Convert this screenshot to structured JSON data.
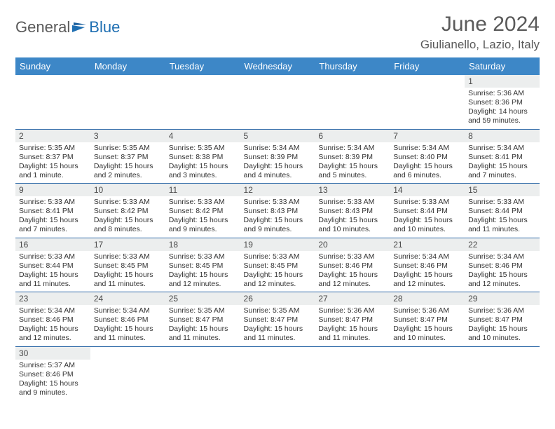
{
  "logo": {
    "text1": "General",
    "text2": "Blue"
  },
  "title": "June 2024",
  "location": "Giulianello, Lazio, Italy",
  "colors": {
    "header_bg": "#3d87c7",
    "header_text": "#ffffff",
    "row_border": "#2f6aa8",
    "shaded": "#eceeee",
    "text": "#333333"
  },
  "dayHeaders": [
    "Sunday",
    "Monday",
    "Tuesday",
    "Wednesday",
    "Thursday",
    "Friday",
    "Saturday"
  ],
  "weeks": [
    [
      null,
      null,
      null,
      null,
      null,
      null,
      {
        "n": "1",
        "sr": "Sunrise: 5:36 AM",
        "ss": "Sunset: 8:36 PM",
        "dl": "Daylight: 14 hours and 59 minutes."
      }
    ],
    [
      {
        "n": "2",
        "sr": "Sunrise: 5:35 AM",
        "ss": "Sunset: 8:37 PM",
        "dl": "Daylight: 15 hours and 1 minute."
      },
      {
        "n": "3",
        "sr": "Sunrise: 5:35 AM",
        "ss": "Sunset: 8:37 PM",
        "dl": "Daylight: 15 hours and 2 minutes."
      },
      {
        "n": "4",
        "sr": "Sunrise: 5:35 AM",
        "ss": "Sunset: 8:38 PM",
        "dl": "Daylight: 15 hours and 3 minutes."
      },
      {
        "n": "5",
        "sr": "Sunrise: 5:34 AM",
        "ss": "Sunset: 8:39 PM",
        "dl": "Daylight: 15 hours and 4 minutes."
      },
      {
        "n": "6",
        "sr": "Sunrise: 5:34 AM",
        "ss": "Sunset: 8:39 PM",
        "dl": "Daylight: 15 hours and 5 minutes."
      },
      {
        "n": "7",
        "sr": "Sunrise: 5:34 AM",
        "ss": "Sunset: 8:40 PM",
        "dl": "Daylight: 15 hours and 6 minutes."
      },
      {
        "n": "8",
        "sr": "Sunrise: 5:34 AM",
        "ss": "Sunset: 8:41 PM",
        "dl": "Daylight: 15 hours and 7 minutes."
      }
    ],
    [
      {
        "n": "9",
        "sr": "Sunrise: 5:33 AM",
        "ss": "Sunset: 8:41 PM",
        "dl": "Daylight: 15 hours and 7 minutes."
      },
      {
        "n": "10",
        "sr": "Sunrise: 5:33 AM",
        "ss": "Sunset: 8:42 PM",
        "dl": "Daylight: 15 hours and 8 minutes."
      },
      {
        "n": "11",
        "sr": "Sunrise: 5:33 AM",
        "ss": "Sunset: 8:42 PM",
        "dl": "Daylight: 15 hours and 9 minutes."
      },
      {
        "n": "12",
        "sr": "Sunrise: 5:33 AM",
        "ss": "Sunset: 8:43 PM",
        "dl": "Daylight: 15 hours and 9 minutes."
      },
      {
        "n": "13",
        "sr": "Sunrise: 5:33 AM",
        "ss": "Sunset: 8:43 PM",
        "dl": "Daylight: 15 hours and 10 minutes."
      },
      {
        "n": "14",
        "sr": "Sunrise: 5:33 AM",
        "ss": "Sunset: 8:44 PM",
        "dl": "Daylight: 15 hours and 10 minutes."
      },
      {
        "n": "15",
        "sr": "Sunrise: 5:33 AM",
        "ss": "Sunset: 8:44 PM",
        "dl": "Daylight: 15 hours and 11 minutes."
      }
    ],
    [
      {
        "n": "16",
        "sr": "Sunrise: 5:33 AM",
        "ss": "Sunset: 8:44 PM",
        "dl": "Daylight: 15 hours and 11 minutes."
      },
      {
        "n": "17",
        "sr": "Sunrise: 5:33 AM",
        "ss": "Sunset: 8:45 PM",
        "dl": "Daylight: 15 hours and 11 minutes."
      },
      {
        "n": "18",
        "sr": "Sunrise: 5:33 AM",
        "ss": "Sunset: 8:45 PM",
        "dl": "Daylight: 15 hours and 12 minutes."
      },
      {
        "n": "19",
        "sr": "Sunrise: 5:33 AM",
        "ss": "Sunset: 8:45 PM",
        "dl": "Daylight: 15 hours and 12 minutes."
      },
      {
        "n": "20",
        "sr": "Sunrise: 5:33 AM",
        "ss": "Sunset: 8:46 PM",
        "dl": "Daylight: 15 hours and 12 minutes."
      },
      {
        "n": "21",
        "sr": "Sunrise: 5:34 AM",
        "ss": "Sunset: 8:46 PM",
        "dl": "Daylight: 15 hours and 12 minutes."
      },
      {
        "n": "22",
        "sr": "Sunrise: 5:34 AM",
        "ss": "Sunset: 8:46 PM",
        "dl": "Daylight: 15 hours and 12 minutes."
      }
    ],
    [
      {
        "n": "23",
        "sr": "Sunrise: 5:34 AM",
        "ss": "Sunset: 8:46 PM",
        "dl": "Daylight: 15 hours and 12 minutes."
      },
      {
        "n": "24",
        "sr": "Sunrise: 5:34 AM",
        "ss": "Sunset: 8:46 PM",
        "dl": "Daylight: 15 hours and 11 minutes."
      },
      {
        "n": "25",
        "sr": "Sunrise: 5:35 AM",
        "ss": "Sunset: 8:47 PM",
        "dl": "Daylight: 15 hours and 11 minutes."
      },
      {
        "n": "26",
        "sr": "Sunrise: 5:35 AM",
        "ss": "Sunset: 8:47 PM",
        "dl": "Daylight: 15 hours and 11 minutes."
      },
      {
        "n": "27",
        "sr": "Sunrise: 5:36 AM",
        "ss": "Sunset: 8:47 PM",
        "dl": "Daylight: 15 hours and 11 minutes."
      },
      {
        "n": "28",
        "sr": "Sunrise: 5:36 AM",
        "ss": "Sunset: 8:47 PM",
        "dl": "Daylight: 15 hours and 10 minutes."
      },
      {
        "n": "29",
        "sr": "Sunrise: 5:36 AM",
        "ss": "Sunset: 8:47 PM",
        "dl": "Daylight: 15 hours and 10 minutes."
      }
    ],
    [
      {
        "n": "30",
        "sr": "Sunrise: 5:37 AM",
        "ss": "Sunset: 8:46 PM",
        "dl": "Daylight: 15 hours and 9 minutes."
      },
      null,
      null,
      null,
      null,
      null,
      null
    ]
  ]
}
